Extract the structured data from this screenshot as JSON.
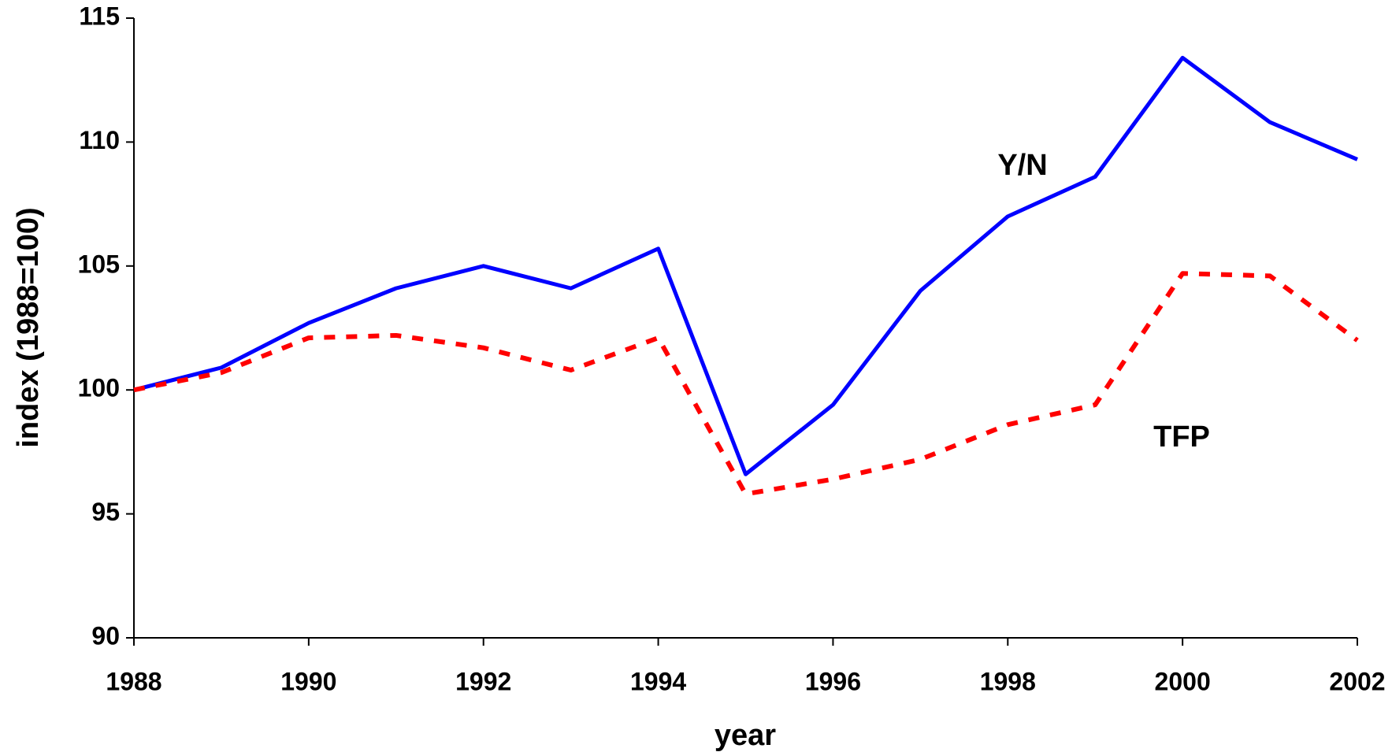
{
  "chart_data": {
    "type": "line",
    "x_label": "year",
    "y_label": "index (1988=100)",
    "x": [
      1988,
      1989,
      1990,
      1991,
      1992,
      1993,
      1994,
      1995,
      1996,
      1997,
      1998,
      1999,
      2000,
      2001,
      2002
    ],
    "series": [
      {
        "name": "Y/N",
        "color": "#0000ff",
        "style": "solid",
        "values": [
          100,
          100.9,
          102.7,
          104.1,
          105.0,
          104.1,
          105.7,
          96.6,
          99.4,
          104.0,
          107.0,
          108.6,
          113.4,
          110.8,
          109.3
        ]
      },
      {
        "name": "TFP",
        "color": "#ff0000",
        "style": "dotted",
        "values": [
          100,
          100.7,
          102.1,
          102.2,
          101.7,
          100.8,
          102.1,
          95.8,
          96.4,
          97.2,
          98.6,
          99.4,
          104.7,
          104.6,
          102.0
        ]
      }
    ],
    "xlim": [
      1988,
      2002
    ],
    "xticks": [
      1988,
      1990,
      1992,
      1994,
      1996,
      1998,
      2000,
      2002
    ],
    "ylim": [
      90,
      115
    ],
    "yticks": [
      90,
      95,
      100,
      105,
      110,
      115
    ],
    "grid": false
  }
}
